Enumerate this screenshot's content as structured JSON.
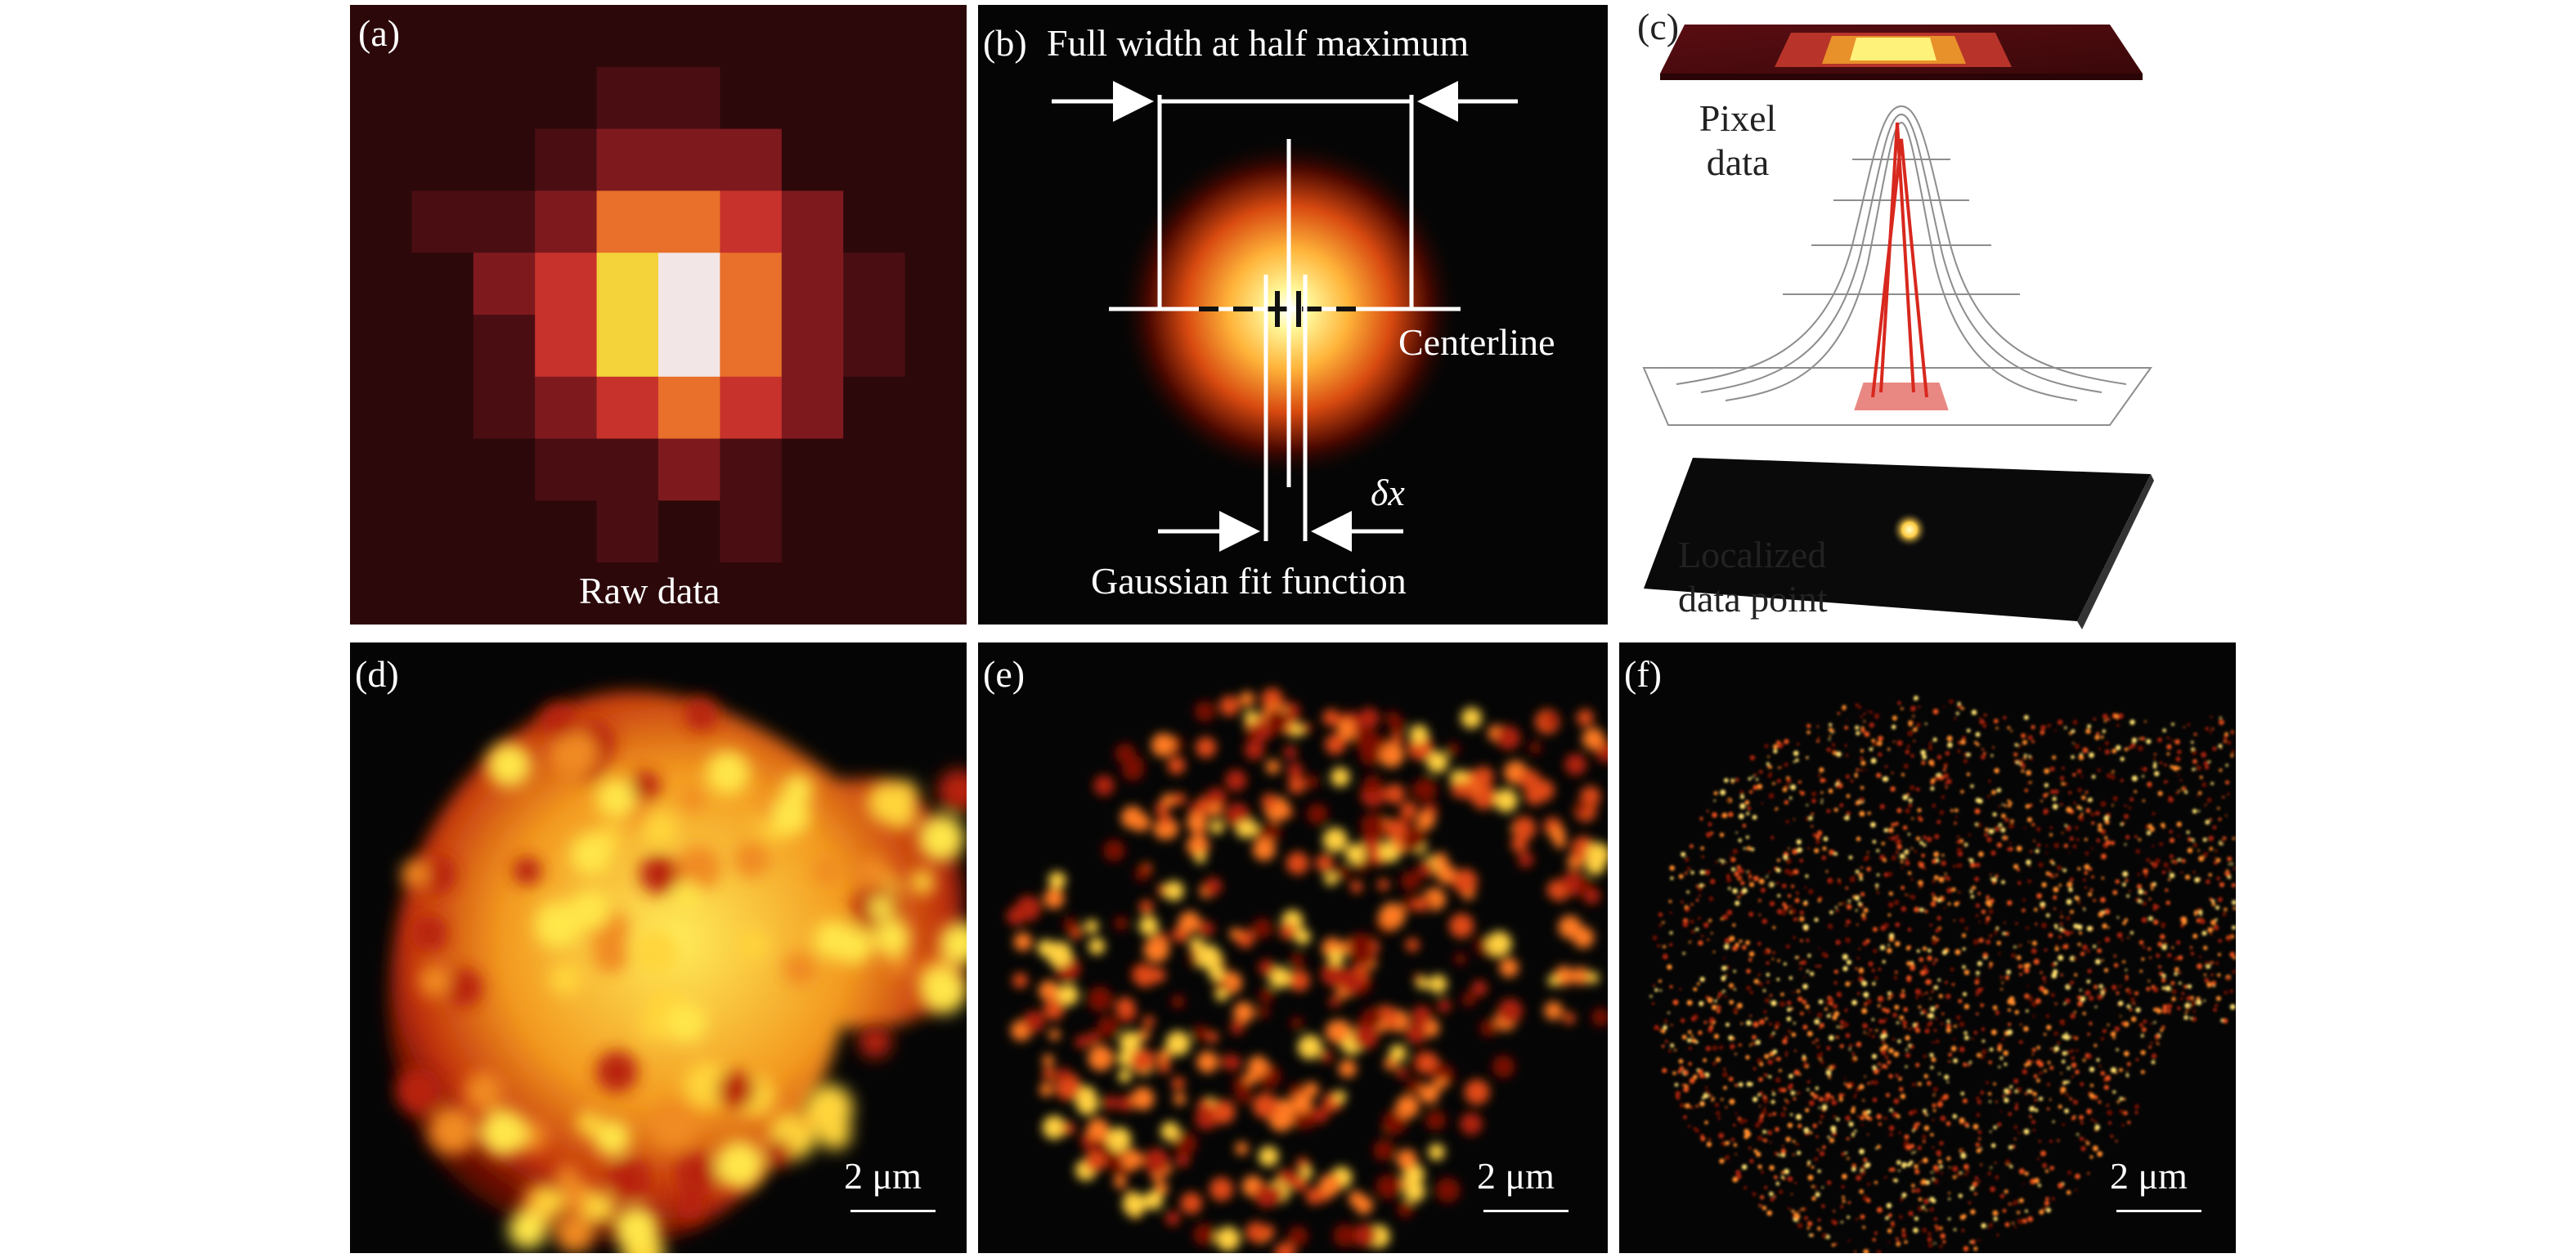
{
  "panels": {
    "a": {
      "tag": "(a)",
      "caption": "Raw data"
    },
    "b": {
      "tag": "(b)",
      "title": "Full width at half maximum",
      "centerline": "Centerline",
      "delta": "δx",
      "caption": "Gaussian fit function"
    },
    "c": {
      "tag": "(c)",
      "pixel_label": "Pixel data",
      "localized_label": "Localized data point"
    },
    "d": {
      "tag": "(d)",
      "scale": "2 μm"
    },
    "e": {
      "tag": "(e)",
      "scale": "2 μm"
    },
    "f": {
      "tag": "(f)",
      "scale": "2 μm"
    }
  },
  "colors": {
    "panel_background": "#050505",
    "annotation": "#ffffff",
    "heat_hot": "#fff36a",
    "heat_mid": "#e05a1a",
    "heat_low": "#6a0a0a"
  }
}
